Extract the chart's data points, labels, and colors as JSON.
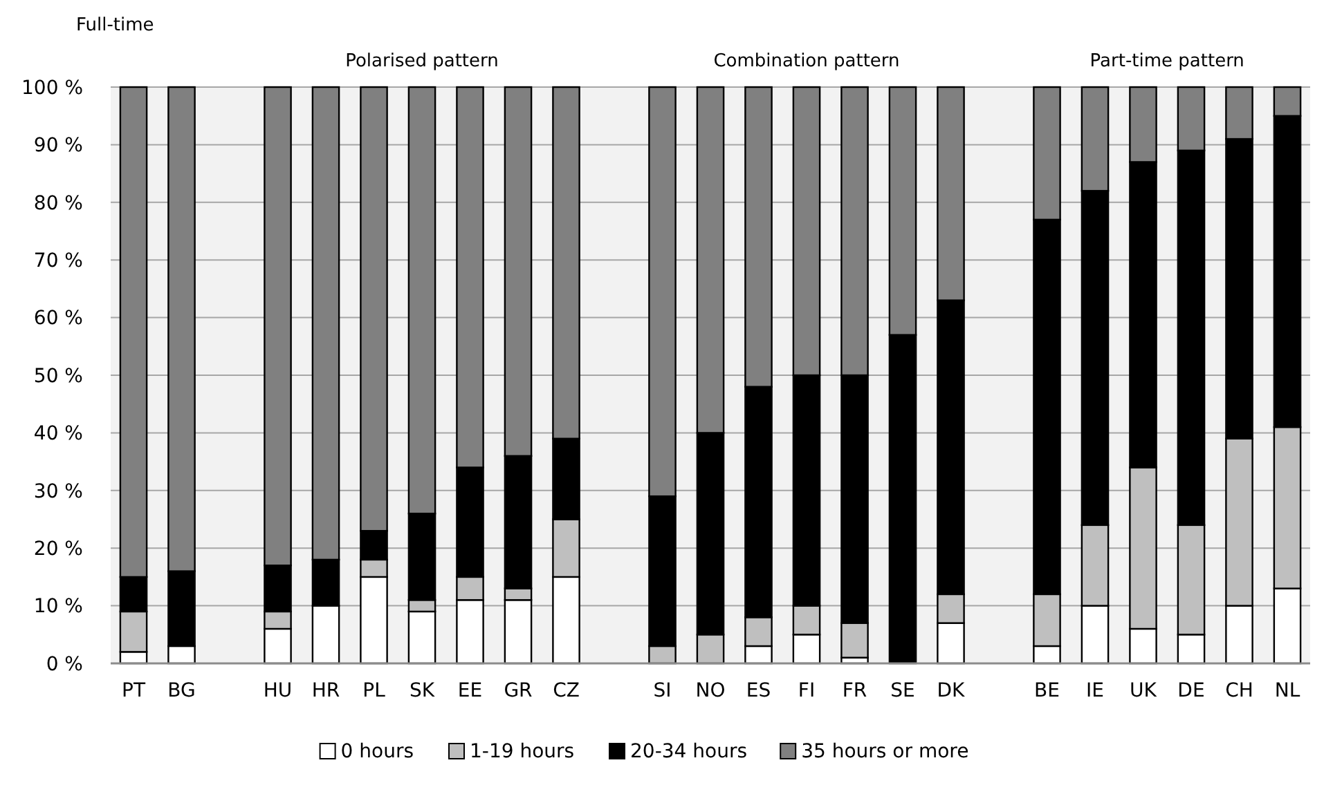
{
  "chart_data": {
    "type": "bar",
    "stacked": true,
    "categories": [
      "PT",
      "BG",
      null,
      "HU",
      "HR",
      "PL",
      "SK",
      "EE",
      "GR",
      "CZ",
      null,
      "SI",
      "NO",
      "ES",
      "FI",
      "FR",
      "SE",
      "DK",
      null,
      "BE",
      "IE",
      "UK",
      "DE",
      "CH",
      "NL"
    ],
    "series": [
      {
        "name": "0 hours",
        "color": "#ffffff",
        "values": [
          2,
          3,
          null,
          6,
          10,
          15,
          9,
          11,
          11,
          15,
          null,
          0,
          0,
          3,
          5,
          1,
          0,
          7,
          null,
          3,
          10,
          6,
          5,
          10,
          13
        ]
      },
      {
        "name": "1-19 hours",
        "color": "#bfbfbf",
        "values": [
          7,
          0,
          null,
          3,
          0,
          3,
          2,
          4,
          2,
          10,
          null,
          3,
          5,
          5,
          5,
          6,
          0,
          5,
          null,
          9,
          14,
          28,
          19,
          29,
          28
        ]
      },
      {
        "name": "20-34 hours",
        "color": "#000000",
        "values": [
          6,
          13,
          null,
          8,
          8,
          5,
          15,
          19,
          23,
          14,
          null,
          26,
          35,
          40,
          40,
          43,
          57,
          51,
          null,
          65,
          58,
          53,
          65,
          52,
          54
        ]
      },
      {
        "name": "35 hours or more",
        "color": "#808080",
        "values": [
          85,
          84,
          null,
          83,
          82,
          77,
          74,
          66,
          64,
          61,
          null,
          71,
          60,
          52,
          50,
          50,
          43,
          37,
          null,
          23,
          18,
          13,
          11,
          9,
          5
        ]
      }
    ],
    "ylim": [
      0,
      100
    ],
    "yticks": [
      {
        "value": 0,
        "label": "0 %"
      },
      {
        "value": 10,
        "label": "10 %"
      },
      {
        "value": 20,
        "label": "20 %"
      },
      {
        "value": 30,
        "label": "30 %"
      },
      {
        "value": 40,
        "label": "40 %"
      },
      {
        "value": 50,
        "label": "50 %"
      },
      {
        "value": 60,
        "label": "60 %"
      },
      {
        "value": 70,
        "label": "70 %"
      },
      {
        "value": 80,
        "label": "80 %"
      },
      {
        "value": 90,
        "label": "90 %"
      },
      {
        "value": 100,
        "label": "100 %"
      }
    ],
    "grid": "y",
    "legend": "bottom",
    "annotations": [
      "Full-time",
      "Polarised pattern",
      "Combination pattern",
      "Part-time pattern"
    ]
  }
}
